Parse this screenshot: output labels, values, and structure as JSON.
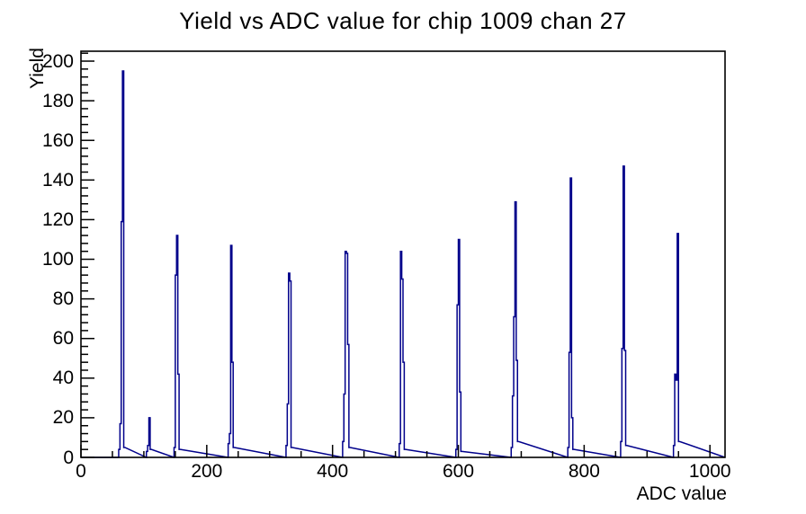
{
  "window": {
    "background": "#ffffff"
  },
  "chart_data": {
    "type": "line",
    "style": "root-histogram-step",
    "title": "Yield vs ADC value for chip 1009 chan 27",
    "xlabel": "ADC value",
    "ylabel": "Yield",
    "xlim": [
      0,
      1024
    ],
    "ylim": [
      0,
      205
    ],
    "x_major_ticks": [
      0,
      200,
      400,
      600,
      800,
      1000
    ],
    "x_minor_step": 50,
    "y_major_ticks": [
      0,
      20,
      40,
      60,
      80,
      100,
      120,
      140,
      160,
      180,
      200
    ],
    "y_minor_step": 4,
    "grid": false,
    "legend": "none",
    "line_color": "#00008b",
    "frame_color": "#000000",
    "bin_width": 2,
    "bins": [
      [
        60,
        4
      ],
      [
        62,
        17
      ],
      [
        64,
        119
      ],
      [
        66,
        195
      ],
      [
        68,
        5
      ],
      [
        104,
        3
      ],
      [
        106,
        6
      ],
      [
        108,
        20
      ],
      [
        110,
        4
      ],
      [
        148,
        5
      ],
      [
        150,
        92
      ],
      [
        152,
        112
      ],
      [
        154,
        42
      ],
      [
        156,
        4
      ],
      [
        234,
        7
      ],
      [
        236,
        12
      ],
      [
        238,
        107
      ],
      [
        240,
        48
      ],
      [
        242,
        5
      ],
      [
        326,
        6
      ],
      [
        328,
        27
      ],
      [
        330,
        93
      ],
      [
        332,
        89
      ],
      [
        334,
        5
      ],
      [
        416,
        8
      ],
      [
        418,
        32
      ],
      [
        420,
        104
      ],
      [
        422,
        103
      ],
      [
        424,
        57
      ],
      [
        426,
        5
      ],
      [
        506,
        7
      ],
      [
        508,
        104
      ],
      [
        510,
        90
      ],
      [
        512,
        48
      ],
      [
        514,
        4
      ],
      [
        596,
        4
      ],
      [
        598,
        77
      ],
      [
        600,
        110
      ],
      [
        602,
        33
      ],
      [
        604,
        3
      ],
      [
        684,
        5
      ],
      [
        686,
        31
      ],
      [
        688,
        71
      ],
      [
        690,
        129
      ],
      [
        692,
        49
      ],
      [
        694,
        8
      ],
      [
        774,
        5
      ],
      [
        776,
        53
      ],
      [
        778,
        141
      ],
      [
        780,
        20
      ],
      [
        782,
        4
      ],
      [
        858,
        8
      ],
      [
        860,
        55
      ],
      [
        862,
        147
      ],
      [
        864,
        54
      ],
      [
        866,
        6
      ],
      [
        942,
        6
      ],
      [
        944,
        42
      ],
      [
        946,
        39
      ],
      [
        948,
        113
      ],
      [
        950,
        8
      ]
    ],
    "peaks_summary": [
      {
        "adc": 66,
        "yield": 195
      },
      {
        "adc": 108,
        "yield": 20
      },
      {
        "adc": 152,
        "yield": 112
      },
      {
        "adc": 240,
        "yield": 107
      },
      {
        "adc": 330,
        "yield": 93
      },
      {
        "adc": 421,
        "yield": 104
      },
      {
        "adc": 509,
        "yield": 104
      },
      {
        "adc": 600,
        "yield": 110
      },
      {
        "adc": 690,
        "yield": 129
      },
      {
        "adc": 778,
        "yield": 141
      },
      {
        "adc": 863,
        "yield": 147
      },
      {
        "adc": 948,
        "yield": 113
      }
    ]
  }
}
